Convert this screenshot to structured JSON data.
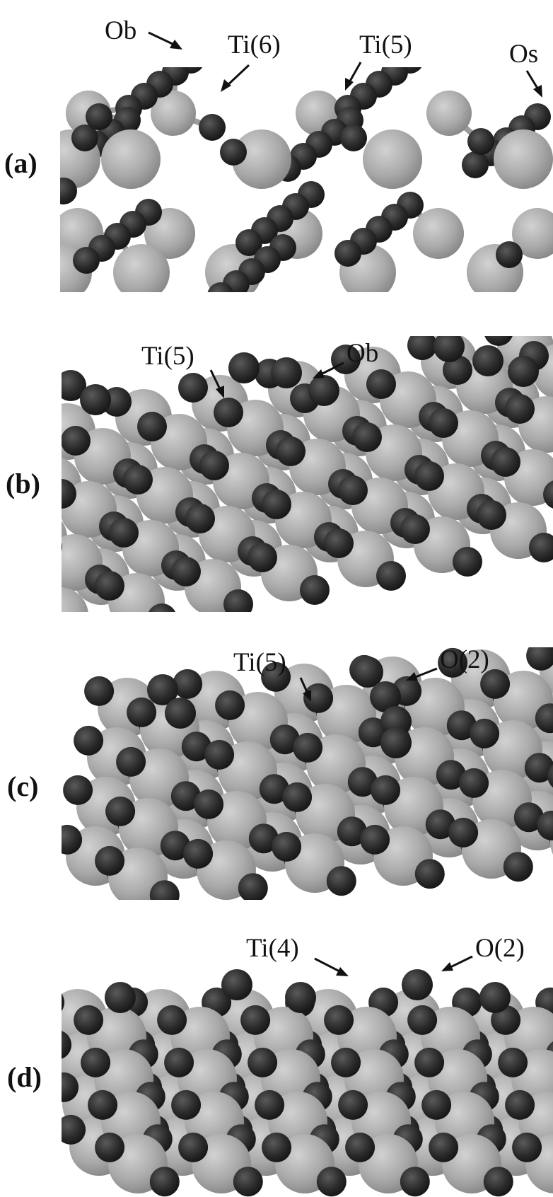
{
  "panels": [
    {
      "id": "a",
      "label": "(a)",
      "annotations": [
        {
          "text": "Ob",
          "target_atom": "O"
        },
        {
          "text": "Ti(6)",
          "target_atom": "Ti"
        },
        {
          "text": "Ti(5)",
          "target_atom": "Ti"
        },
        {
          "text": "Os",
          "target_atom": "O"
        }
      ]
    },
    {
      "id": "b",
      "label": "(b)",
      "annotations": [
        {
          "text": "Ti(5)",
          "target_atom": "Ti"
        },
        {
          "text": "Ob",
          "target_atom": "O"
        }
      ]
    },
    {
      "id": "c",
      "label": "(c)",
      "annotations": [
        {
          "text": "Ti(5)",
          "target_atom": "Ti"
        },
        {
          "text": "O(2)",
          "target_atom": "O"
        }
      ]
    },
    {
      "id": "d",
      "label": "(d)",
      "annotations": [
        {
          "text": "Ti(4)",
          "target_atom": "Ti"
        },
        {
          "text": "O(2)",
          "target_atom": "O"
        }
      ]
    }
  ],
  "colors": {
    "titanium": "#a9a9a9",
    "oxygen": "#2b2b2b",
    "bond": "#9a9a9a",
    "text": "#111111",
    "background": "#ffffff"
  }
}
